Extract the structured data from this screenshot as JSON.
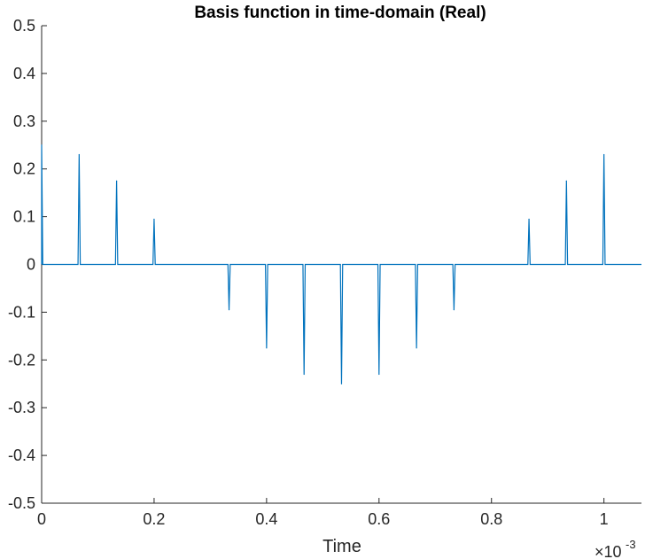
{
  "chart_data": {
    "type": "line",
    "title": "Basis function in time-domain (Real)",
    "xlabel": "Time",
    "ylabel": "",
    "x_exponent_base": "×10",
    "x_exponent_power": "-3",
    "x_scale": 0.001,
    "xlim": [
      0,
      1.0667
    ],
    "ylim": [
      -0.5,
      0.5
    ],
    "x_ticks": [
      0,
      0.2,
      0.4,
      0.6,
      0.8,
      1
    ],
    "x_tick_labels": [
      "0",
      "0.2",
      "0.4",
      "0.6",
      "0.8",
      "1"
    ],
    "y_ticks": [
      -0.5,
      -0.4,
      -0.3,
      -0.2,
      -0.1,
      0,
      0.1,
      0.2,
      0.3,
      0.4,
      0.5
    ],
    "y_tick_labels": [
      "-0.5",
      "-0.4",
      "-0.3",
      "-0.2",
      "-0.1",
      "0",
      "0.1",
      "0.2",
      "0.3",
      "0.4",
      "0.5"
    ],
    "grid": false,
    "series": [
      {
        "color": "#0072bd",
        "spikes": [
          {
            "x": 0.0,
            "y": 0.25
          },
          {
            "x": 0.0667,
            "y": 0.23
          },
          {
            "x": 0.1333,
            "y": 0.175
          },
          {
            "x": 0.2,
            "y": 0.095
          },
          {
            "x": 0.3333,
            "y": -0.095
          },
          {
            "x": 0.4,
            "y": -0.175
          },
          {
            "x": 0.4667,
            "y": -0.23
          },
          {
            "x": 0.5333,
            "y": -0.25
          },
          {
            "x": 0.6,
            "y": -0.23
          },
          {
            "x": 0.6667,
            "y": -0.175
          },
          {
            "x": 0.7333,
            "y": -0.095
          },
          {
            "x": 0.8667,
            "y": 0.095
          },
          {
            "x": 0.9333,
            "y": 0.175
          },
          {
            "x": 1.0,
            "y": 0.23
          }
        ]
      }
    ]
  }
}
